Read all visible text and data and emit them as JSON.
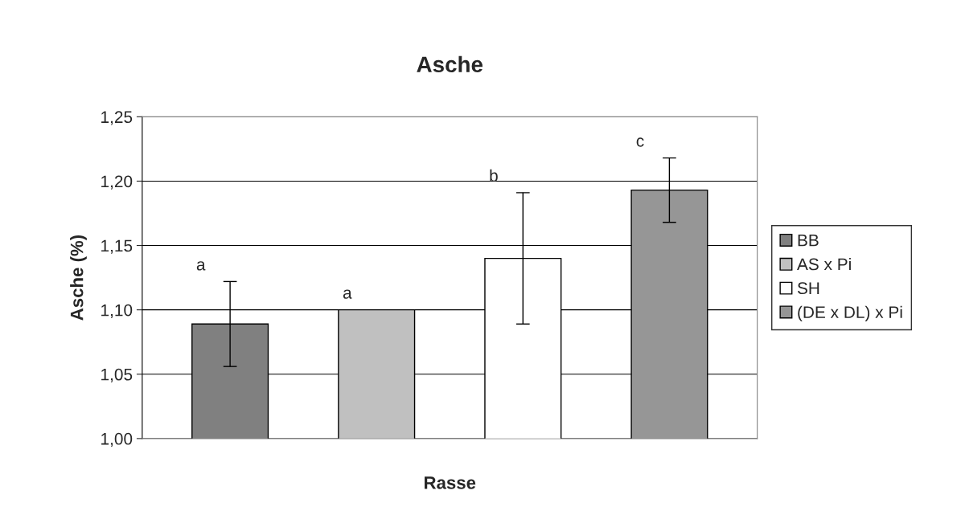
{
  "chart_data": {
    "type": "bar",
    "title": "Asche",
    "xlabel": "Rasse",
    "ylabel": "Asche (%)",
    "categories": [
      null,
      null,
      null,
      null
    ],
    "series": [
      {
        "name": "BB",
        "color": "#808080",
        "values": [
          1.089,
          null,
          null,
          null
        ],
        "errors": [
          0.033,
          null,
          null,
          null
        ]
      },
      {
        "name": "AS x Pi",
        "color": "#c0c0c0",
        "values": [
          null,
          1.1,
          null,
          null
        ],
        "errors": [
          null,
          null,
          null,
          null
        ]
      },
      {
        "name": "SH",
        "color": "#ffffff",
        "values": [
          null,
          null,
          1.14,
          null
        ],
        "errors": [
          null,
          null,
          0.051,
          null
        ]
      },
      {
        "name": "(DE x DL) x Pi",
        "color": "#969696",
        "values": [
          null,
          null,
          null,
          1.193
        ],
        "errors": [
          null,
          null,
          null,
          0.025
        ]
      }
    ],
    "annotations": [
      "a",
      "a",
      "b",
      "c"
    ],
    "ylim": [
      1.0,
      1.25
    ],
    "yticks": [
      {
        "value": 1.0,
        "label": "1,00"
      },
      {
        "value": 1.05,
        "label": "1,05"
      },
      {
        "value": 1.1,
        "label": "1,10"
      },
      {
        "value": 1.15,
        "label": "1,15"
      },
      {
        "value": 1.2,
        "label": "1,20"
      },
      {
        "value": 1.25,
        "label": "1,25"
      }
    ],
    "grid": "y",
    "legend": "right"
  }
}
